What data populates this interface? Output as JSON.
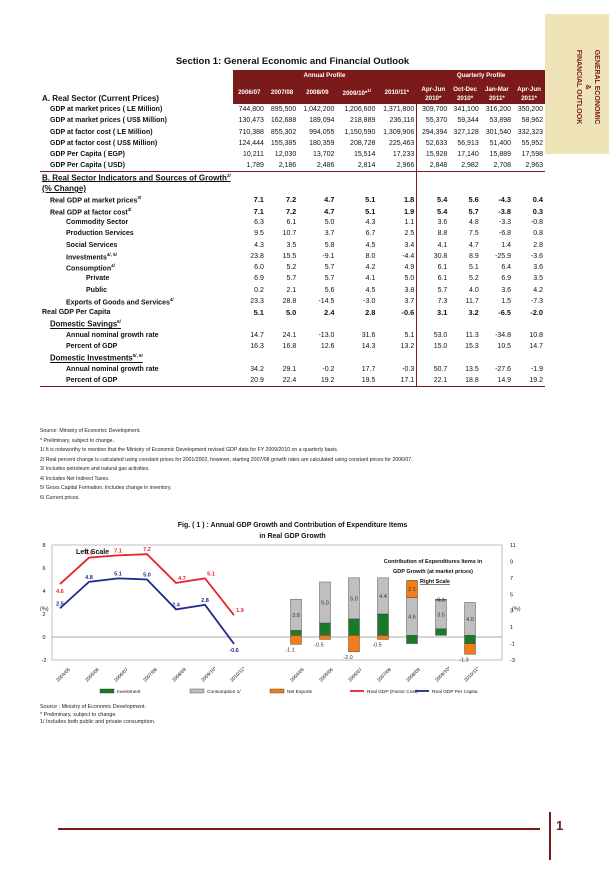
{
  "side_tab": {
    "line1": "GENERAL ECONOMIC",
    "line2": "&",
    "line3": "FINANCIAL OUTLOOK"
  },
  "section_title": "Section 1: General Economic and Financial Outlook",
  "table": {
    "annual_header": "Annual Profile",
    "quarterly_header": "Quarterly Profile",
    "annual_years": [
      "2006/07",
      "2007/08",
      "2008/09",
      "2009/10*",
      "2010/11*"
    ],
    "annual_note_sup": "1/",
    "quarter_top": [
      "Apr-Jun",
      "Oct-Dec",
      "Jan-Mar",
      "Apr-Jun"
    ],
    "quarter_bottom": [
      "2010*",
      "2010*",
      "2011*",
      "2011*"
    ],
    "section_a": "A. Real Sector (Current Prices)",
    "section_b": "B. Real Sector Indicators and Sources of Growth",
    "section_b_sup": "2/",
    "pct_change": "(% Change)",
    "rows_a": [
      {
        "label": "GDP at market prices ( LE Million)",
        "vals": [
          "744,800",
          "895,500",
          "1,042,200",
          "1,206,600",
          "1,371,800",
          "309,700",
          "341,100",
          "316,200",
          "350,200"
        ]
      },
      {
        "label": "GDP at market prices ( US$ Million)",
        "vals": [
          "130,473",
          "162,688",
          "189,094",
          "218,889",
          "236,116",
          "55,370",
          "59,344",
          "53,898",
          "58,962"
        ]
      },
      {
        "label": "GDP at factor cost ( LE Million)",
        "vals": [
          "710,388",
          "855,302",
          "994,055",
          "1,150,590",
          "1,309,906",
          "294,394",
          "327,128",
          "301,540",
          "332,323"
        ]
      },
      {
        "label": "GDP at factor cost ( US$ Million)",
        "vals": [
          "124,444",
          "155,385",
          "180,359",
          "208,728",
          "225,463",
          "52,633",
          "56,913",
          "51,400",
          "55,952"
        ]
      },
      {
        "label": "GDP Per Capita  ( EGP)",
        "vals": [
          "10,211",
          "12,030",
          "13,702",
          "15,514",
          "17,233",
          "15,928",
          "17,140",
          "15,889",
          "17,598"
        ]
      },
      {
        "label": "GDP Per Capita  ( USD)",
        "vals": [
          "1,789",
          "2,186",
          "2,486",
          "2,814",
          "2,966",
          "2,848",
          "2,982",
          "2,708",
          "2,963"
        ]
      }
    ],
    "rows_b": [
      {
        "label": "Real GDP at market prices",
        "sup": "3/",
        "indent": 1,
        "bold": true,
        "vals": [
          "7.1",
          "7.2",
          "4.7",
          "5.1",
          "1.8",
          "5.4",
          "5.6",
          "-4.3",
          "0.4"
        ]
      },
      {
        "label": "Real GDP at factor cost",
        "sup": "3/",
        "indent": 1,
        "bold": true,
        "vals": [
          "7.1",
          "7.2",
          "4.7",
          "5.1",
          "1.9",
          "5.4",
          "5.7",
          "-3.8",
          "0.3"
        ]
      },
      {
        "label": "Commodity Sector",
        "sup": "",
        "indent": 2,
        "bold": false,
        "vals": [
          "6.3",
          "6.1",
          "5.0",
          "4.3",
          "1.1",
          "3.6",
          "4.8",
          "-3.3",
          "-0.8"
        ]
      },
      {
        "label": "Production Services",
        "sup": "",
        "indent": 2,
        "bold": false,
        "vals": [
          "9.5",
          "10.7",
          "3.7",
          "6.7",
          "2.5",
          "8.8",
          "7.5",
          "-6.8",
          "0.8"
        ]
      },
      {
        "label": "Social Services",
        "sup": "",
        "indent": 2,
        "bold": false,
        "vals": [
          "4.3",
          "3.5",
          "5.8",
          "4.5",
          "3.4",
          "4.1",
          "4.7",
          "1.4",
          "2.8"
        ]
      },
      {
        "label": "Investments",
        "sup": "4/, 5/",
        "indent": 2,
        "bold": false,
        "vals": [
          "23.8",
          "15.5",
          "-9.1",
          "8.0",
          "-4.4",
          "30.8",
          "8.9",
          "-25.9",
          "-3.6"
        ]
      },
      {
        "label": "Consumption",
        "sup": "4/",
        "indent": 2,
        "bold": false,
        "vals": [
          "6.0",
          "5.2",
          "5.7",
          "4.2",
          "4.9",
          "6.1",
          "5.1",
          "6.4",
          "3.6"
        ]
      },
      {
        "label": "Private",
        "sup": "",
        "indent": 3,
        "bold": false,
        "vals": [
          "6.9",
          "5.7",
          "5.7",
          "4.1",
          "5.0",
          "6.1",
          "5.2",
          "6.9",
          "3.5"
        ]
      },
      {
        "label": "Public",
        "sup": "",
        "indent": 3,
        "bold": false,
        "vals": [
          "0.2",
          "2.1",
          "5.6",
          "4.5",
          "3.8",
          "5.7",
          "4.0",
          "3.6",
          "4.2"
        ]
      },
      {
        "label": "Exports of Goods and Services",
        "sup": "4/",
        "indent": 2,
        "bold": false,
        "vals": [
          "23.3",
          "28.8",
          "-14.5",
          "-3.0",
          "3.7",
          "7.3",
          "11.7",
          "1.5",
          "-7.3"
        ]
      },
      {
        "label": "Real GDP Per Capita",
        "sup": "",
        "indent": 0,
        "bold": true,
        "vals": [
          "5.1",
          "5.0",
          "2.4",
          "2.8",
          "-0.6",
          "3.1",
          "3.2",
          "-6.5",
          "-2.0"
        ]
      }
    ],
    "domestic_savings": {
      "label": "Domestic Savings",
      "sup": "6/"
    },
    "rows_savings": [
      {
        "label": "Annual  nominal growth rate",
        "vals": [
          "14.7",
          "24.1",
          "-13.0",
          "31.6",
          "5.1",
          "53.0",
          "11.3",
          "-34.8",
          "10.8"
        ]
      },
      {
        "label": "Percent of GDP",
        "vals": [
          "16.3",
          "16.8",
          "12.6",
          "14.3",
          "13.2",
          "15.0",
          "15.3",
          "10.5",
          "14.7"
        ]
      }
    ],
    "domestic_investments": {
      "label": "Domestic Investments",
      "sup": "5/, 6/"
    },
    "rows_investments": [
      {
        "label": "Annual nominal growth rate",
        "vals": [
          "34.2",
          "29.1",
          "-0.2",
          "17.7",
          "-0.3",
          "50.7",
          "13.5",
          "-27.6",
          "-1.9"
        ]
      },
      {
        "label": "Percent of GDP",
        "vals": [
          "20.9",
          "22.4",
          "19.2",
          "19.5",
          "17.1",
          "22.1",
          "18.8",
          "14.9",
          "19.2"
        ]
      }
    ]
  },
  "notes": [
    "Source: Ministry of Economic Development.",
    "* Preliminary, subject to change.",
    "1/ It is noteworthy to mention that the Ministry of Economic Development revised GDP data for FY 2009/2010 on a quarterly basis.",
    "2/ Real percent change is calculated using constant prices for 2001/2002, however, starting 2007/08 growth rates  are calculated using constant prices for 2006/07.",
    "3/ Includes petroleum and natural gas activities.",
    "4/ Includes Net Indirect Taxes.",
    "5/ Gross Capital Formation. Includes change in inventory.",
    "6/ Current prices."
  ],
  "figure": {
    "title_line1": "Fig. ( 1 ) : Annual GDP Growth and Contribution of Expenditure Items",
    "title_line2": "in Real GDP Growth"
  },
  "chart_data": {
    "type": "bar",
    "left_scale_label": "Left Scale",
    "right_scale_title_1": "Contribution of Expenditures Items in",
    "right_scale_title_2": "GDP Growth (at market prices)",
    "right_scale_label": "Right Scale",
    "left_axis_label": "(%)",
    "right_axis_label": "(%)",
    "ylim_left": [
      -2,
      8
    ],
    "left_ticks": [
      "-2",
      "0",
      "2",
      "4",
      "6",
      "8"
    ],
    "ylim_right": [
      -3,
      11
    ],
    "right_ticks": [
      "-3",
      "-1",
      "1",
      "3",
      "5",
      "7",
      "9",
      "11"
    ],
    "left_categories": [
      "2004/05",
      "2005/06",
      "2006/07",
      "2007/08",
      "2008/09",
      "2009/10*",
      "2010/11*"
    ],
    "lines": [
      {
        "name": "Real GDP (Factor Cost)",
        "color": "#e8232b",
        "values": [
          4.6,
          6.9,
          7.1,
          7.2,
          4.7,
          5.1,
          1.9
        ],
        "labels": [
          "4.6",
          "6.9",
          "7.1",
          "7.2",
          "4.7",
          "5.1",
          "1.9"
        ]
      },
      {
        "name": "Real GDP Per Capita",
        "color": "#1f2a8c",
        "values": [
          2.5,
          4.8,
          5.1,
          5.0,
          2.4,
          2.8,
          -0.6
        ],
        "labels": [
          "2.5",
          "4.8",
          "5.1",
          "5.0",
          "2.4",
          "2.8",
          "-0.6"
        ]
      }
    ],
    "right_categories": [
      "2004/05",
      "2005/06",
      "2006/07",
      "2007/08",
      "2008/09",
      "2009/10*",
      "2010/11*"
    ],
    "stacked": [
      {
        "name": "Investment",
        "color": "#1a7a2a",
        "values": [
          0.6,
          1.5,
          2.0,
          2.6,
          -1.0,
          0.8,
          -1.0
        ]
      },
      {
        "name": "Consumption 1/",
        "color": "#bfbfbf",
        "values": [
          3.8,
          5.0,
          5.0,
          4.4,
          4.6,
          3.5,
          4.0
        ]
      },
      {
        "name": "Net Exports",
        "color": "#f07d1a",
        "values": [
          -1.1,
          -0.5,
          -2.0,
          -0.5,
          2.1,
          0.1,
          -1.3
        ]
      }
    ],
    "bar_labels": [
      {
        "consumption": "3.8",
        "net": "-1.1"
      },
      {
        "consumption": "5.0",
        "net": "-0.5"
      },
      {
        "consumption": "5.0",
        "net": "-2.0"
      },
      {
        "consumption": "4.4",
        "net": "-0.5"
      },
      {
        "consumption": "4.6",
        "net": "2.1"
      },
      {
        "consumption": "3.5",
        "net": "0.1"
      },
      {
        "consumption": "4.0",
        "net": "-1.3"
      }
    ],
    "legend": [
      "Investment",
      "Consumption 1/",
      "Net Exports",
      "Real GDP (Factor Cost)",
      "Real GDP Per Capita"
    ]
  },
  "chart_notes": [
    "Source : Ministry of Economic Development.",
    "* Preliminary, subject to change.",
    "1/ Includes both public and private consumption."
  ],
  "page_number": "1"
}
